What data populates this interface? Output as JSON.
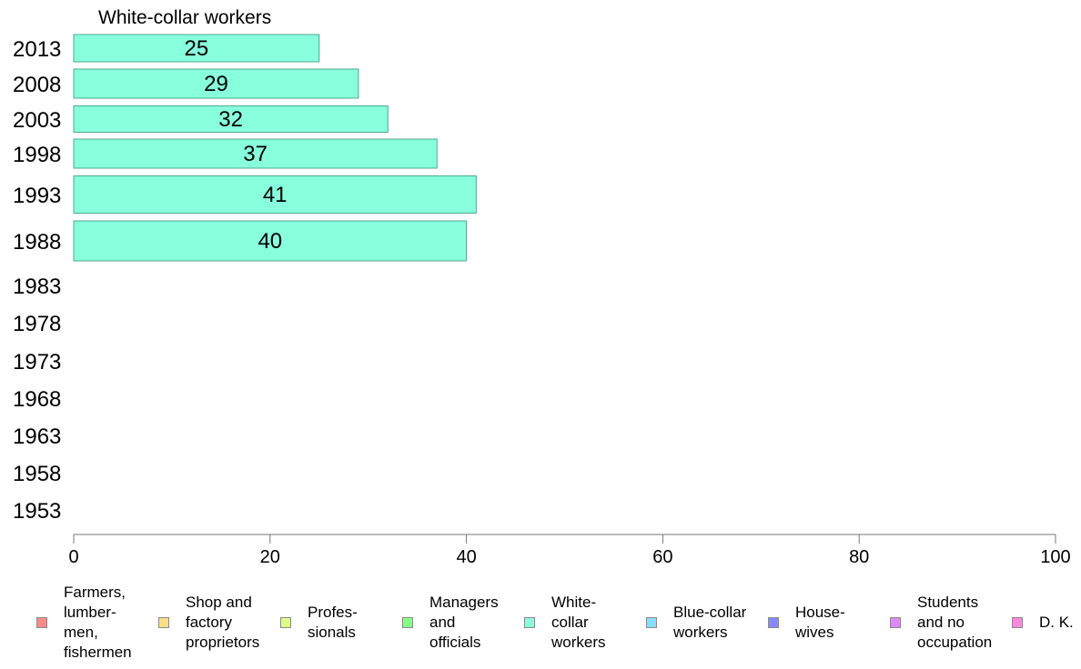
{
  "chart_data": {
    "type": "bar",
    "orientation": "horizontal",
    "title": "White-collar workers",
    "categories": [
      "2013",
      "2008",
      "2003",
      "1998",
      "1993",
      "1988",
      "1983",
      "1978",
      "1973",
      "1968",
      "1963",
      "1958",
      "1953"
    ],
    "series": [
      {
        "name": "White-collar workers",
        "values": [
          25,
          29,
          32,
          37,
          41,
          40,
          null,
          null,
          null,
          null,
          null,
          null,
          null
        ]
      }
    ],
    "data_labels": [
      "25",
      "29",
      "32",
      "37",
      "41",
      "40"
    ],
    "xlim": [
      0,
      100
    ],
    "xticks": [
      "0",
      "20",
      "40",
      "60",
      "80",
      "100"
    ],
    "xlabel": "",
    "ylabel": "",
    "grid": false,
    "bar_color": "#88ffdd",
    "bar_border_color": "#4fa88c",
    "legend_position": "bottom",
    "legend": [
      {
        "label": "Farmers,\nlumber-\nmen,\nfishermen",
        "color": "#ff8888"
      },
      {
        "label": "Shop and\nfactory\nproprietors",
        "color": "#ffdd88"
      },
      {
        "label": "Profes-\nsionals",
        "color": "#ddff88"
      },
      {
        "label": "Managers\nand\nofficials",
        "color": "#88ff88"
      },
      {
        "label": "White-\ncollar\nworkers",
        "color": "#88ffdd"
      },
      {
        "label": "Blue-collar\nworkers",
        "color": "#88ddff"
      },
      {
        "label": "House-\nwives",
        "color": "#8888ff"
      },
      {
        "label": "Students\nand no\noccupation",
        "color": "#dd88ff"
      },
      {
        "label": "D. K.",
        "color": "#ff88dd"
      }
    ]
  }
}
